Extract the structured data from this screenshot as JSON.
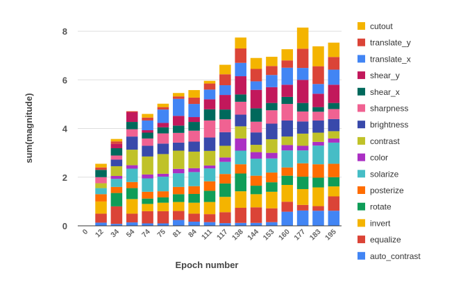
{
  "chart_data": {
    "type": "bar",
    "stacked": true,
    "title": "",
    "xlabel": "Epoch number",
    "ylabel": "sum(magnitude)",
    "ylim": [
      0,
      8.6
    ],
    "yticks": [
      "0",
      "2",
      "4",
      "6",
      "8"
    ],
    "grid": true,
    "legend_position": "right",
    "categories": [
      "0",
      "12",
      "34",
      "54",
      "74",
      "75",
      "81",
      "84",
      "111",
      "117",
      "138",
      "144",
      "153",
      "160",
      "177",
      "183",
      "195"
    ],
    "series": [
      {
        "name": "auto_contrast",
        "color": "#4285f4",
        "values": [
          0,
          0.13,
          0.08,
          0.14,
          0.1,
          0.1,
          0.24,
          0.17,
          0.15,
          0.11,
          0.12,
          0.12,
          0.15,
          0.58,
          0.63,
          0.62,
          0.62
        ]
      },
      {
        "name": "equalize",
        "color": "#db4437",
        "values": [
          0,
          0.37,
          0.72,
          0.36,
          0.5,
          0.5,
          0.37,
          0.33,
          0.33,
          0.45,
          0.62,
          0.64,
          0.57,
          0.41,
          0.23,
          0.19,
          0.59
        ]
      },
      {
        "name": "invert",
        "color": "#f4b400",
        "values": [
          0,
          0.5,
          0,
          0.6,
          0.3,
          0.35,
          0.37,
          0.45,
          0.5,
          0.63,
          0.68,
          0.54,
          0.68,
          0.69,
          0.65,
          0.77,
          0.41
        ]
      },
      {
        "name": "rotate",
        "color": "#0f9d58",
        "values": [
          0,
          0,
          0.55,
          0.45,
          0.22,
          0.22,
          0.32,
          0.36,
          0.46,
          0.55,
          0.73,
          0.35,
          0.39,
          0.38,
          0.51,
          0.4,
          0.38
        ]
      },
      {
        "name": "posterize",
        "color": "#ff6d01",
        "values": [
          0,
          0.3,
          0.25,
          0.25,
          0.28,
          0.25,
          0.3,
          0.32,
          0.39,
          0.39,
          0.38,
          0.41,
          0.4,
          0.34,
          0.55,
          0.55,
          0.55
        ]
      },
      {
        "name": "solarize",
        "color": "#46bdc6",
        "values": [
          0,
          0.25,
          0.33,
          0.55,
          0.55,
          0.6,
          0.56,
          0.58,
          0.53,
          0.5,
          0.56,
          0.7,
          0.58,
          0.7,
          0.53,
          0.77,
          0.87
        ]
      },
      {
        "name": "color",
        "color": "#ab30c4",
        "values": [
          0,
          0,
          0.12,
          0.14,
          0.16,
          0.12,
          0.18,
          0.16,
          0.12,
          0.18,
          0.5,
          0.27,
          0.23,
          0.22,
          0.19,
          0.15,
          0.17
        ]
      },
      {
        "name": "contrast",
        "color": "#c0c229",
        "values": [
          0,
          0.2,
          0.4,
          0.64,
          0.74,
          0.81,
          0.75,
          0.68,
          0.6,
          0.48,
          0.5,
          0.3,
          0.56,
          0.35,
          0.5,
          0.38,
          0.3
        ]
      },
      {
        "name": "brightness",
        "color": "#3949ab",
        "values": [
          0,
          0,
          0.27,
          0.54,
          0.44,
          0.43,
          0.33,
          0.41,
          0.55,
          0.56,
          0.48,
          0.51,
          0.64,
          0.66,
          0.5,
          0.5,
          0.5
        ]
      },
      {
        "name": "sharpness",
        "color": "#f06292",
        "values": [
          0,
          0.25,
          0.17,
          0.3,
          0.3,
          0.42,
          0.4,
          0.45,
          0.7,
          0.53,
          0.53,
          0.44,
          0.55,
          0.68,
          0.41,
          0.36,
          0.41
        ]
      },
      {
        "name": "shear_x",
        "color": "#00695c",
        "values": [
          0,
          0.3,
          0.3,
          0.3,
          0.24,
          0.25,
          0.3,
          0.36,
          0.46,
          0.4,
          0.3,
          0.55,
          0.3,
          0.29,
          0.35,
          0.19,
          0.25
        ]
      },
      {
        "name": "shear_y",
        "color": "#c2185b",
        "values": [
          0,
          0,
          0.18,
          0.4,
          0.1,
          0.18,
          0.4,
          0.2,
          0.41,
          0.6,
          0.75,
          0.76,
          0.65,
          0.5,
          0.95,
          0.55,
          0.75
        ]
      },
      {
        "name": "translate_x",
        "color": "#4285f4",
        "values": [
          0,
          0,
          0,
          0,
          0.4,
          0.55,
          0.7,
          0.54,
          0.4,
          0.4,
          0.55,
          0.35,
          0.5,
          0.7,
          0.49,
          0.4,
          0.62
        ]
      },
      {
        "name": "translate_y",
        "color": "#db4437",
        "values": [
          0,
          0.1,
          0.1,
          0.04,
          0.12,
          0.1,
          0.1,
          0.26,
          0.25,
          0.45,
          0.59,
          0.51,
          0.37,
          0.3,
          0.79,
          0.73,
          0.52
        ]
      },
      {
        "name": "cutout",
        "color": "#f4b400",
        "values": [
          0,
          0.15,
          0.1,
          0,
          0.15,
          0.14,
          0.14,
          0.31,
          0.11,
          0.39,
          0.45,
          0.45,
          0.38,
          0.46,
          0.87,
          0.82,
          0.59
        ]
      }
    ]
  }
}
